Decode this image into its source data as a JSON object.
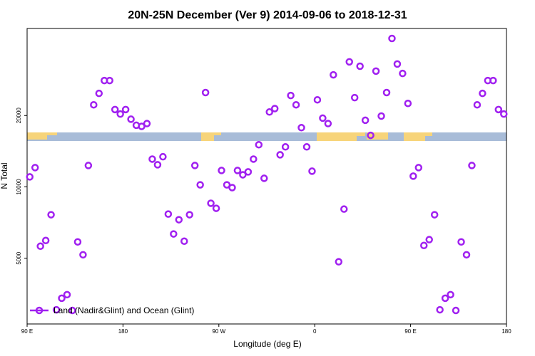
{
  "chart_data": {
    "type": "scatter",
    "title": "20N-25N December (Ver 9)   2014-09-06 to 2018-12-31",
    "x_label": "Longitude (deg E)",
    "y_label": "N Total",
    "x": [
      92.5,
      97.5,
      102.5,
      107.5,
      112.5,
      117.5,
      122.5,
      127.5,
      132.5,
      137.5,
      142.5,
      147.5,
      152.5,
      157.5,
      162.5,
      167.5,
      172.5,
      177.5,
      182.5,
      187.5,
      192.5,
      197.5,
      202.5,
      207.5,
      212.5,
      217.5,
      222.5,
      227.5,
      232.5,
      237.5,
      242.5,
      247.5,
      252.5,
      257.5,
      262.5,
      267.5,
      272.5,
      277.5,
      282.5,
      287.5,
      292.5,
      297.5,
      302.5,
      307.5,
      312.5,
      317.5,
      322.5,
      327.5,
      332.5,
      337.5,
      342.5,
      347.5,
      352.5,
      357.5,
      362.5,
      367.5,
      372.5,
      377.5,
      382.5,
      387.5,
      392.5,
      397.5,
      402.5,
      407.5,
      412.5,
      417.5,
      422.5,
      427.5,
      432.5,
      437.5,
      442.5,
      447.5,
      452.5,
      457.5,
      462.5,
      467.5,
      472.5,
      477.5,
      482.5,
      487.5,
      492.5,
      497.5,
      502.5,
      507.5,
      512.5,
      517.5,
      522.5,
      527.5,
      532.5,
      537.5
    ],
    "series": [
      {
        "name": "Land (Nadir&Glint) and Ocean (Glint)",
        "color": "#a020f0",
        "values": [
          11020,
          12060,
          5620,
          5940,
          7630,
          3030,
          3390,
          3510,
          3010,
          5860,
          5170,
          12310,
          22200,
          24800,
          28100,
          28100,
          21200,
          20300,
          21200,
          19300,
          18200,
          18000,
          18500,
          13100,
          12400,
          13400,
          7680,
          6330,
          7270,
          5900,
          7630,
          12310,
          10200,
          25000,
          8530,
          8120,
          11730,
          10200,
          9930,
          11730,
          11250,
          11570,
          13100,
          15060,
          10870,
          20700,
          21400,
          13660,
          14750,
          24300,
          22200,
          17780,
          14750,
          11650,
          23300,
          19500,
          18500,
          29700,
          4830,
          8060,
          33700,
          23800,
          32300,
          19100,
          16500,
          30800,
          19900,
          25000,
          42300,
          33000,
          30100,
          22500,
          11100,
          12060,
          5660,
          5990,
          7630,
          3030,
          3390,
          3510,
          3010,
          5860,
          5170,
          12310,
          22200,
          24800,
          28100,
          28100,
          21200,
          20300
        ]
      }
    ],
    "xlim": [
      90,
      540
    ],
    "xticks": [
      {
        "value": 90,
        "label": "90 E"
      },
      180,
      {
        "value": 270,
        "label": "90 W"
      },
      {
        "value": 360,
        "label": "0"
      },
      {
        "value": 450,
        "label": "90 E"
      },
      {
        "value": 540,
        "label": "180"
      }
    ],
    "ylim": [
      2640,
      46600
    ],
    "yticks": [
      5000,
      10000,
      20000
    ],
    "ylog": true,
    "legend": "lower left",
    "grid": false
  }
}
